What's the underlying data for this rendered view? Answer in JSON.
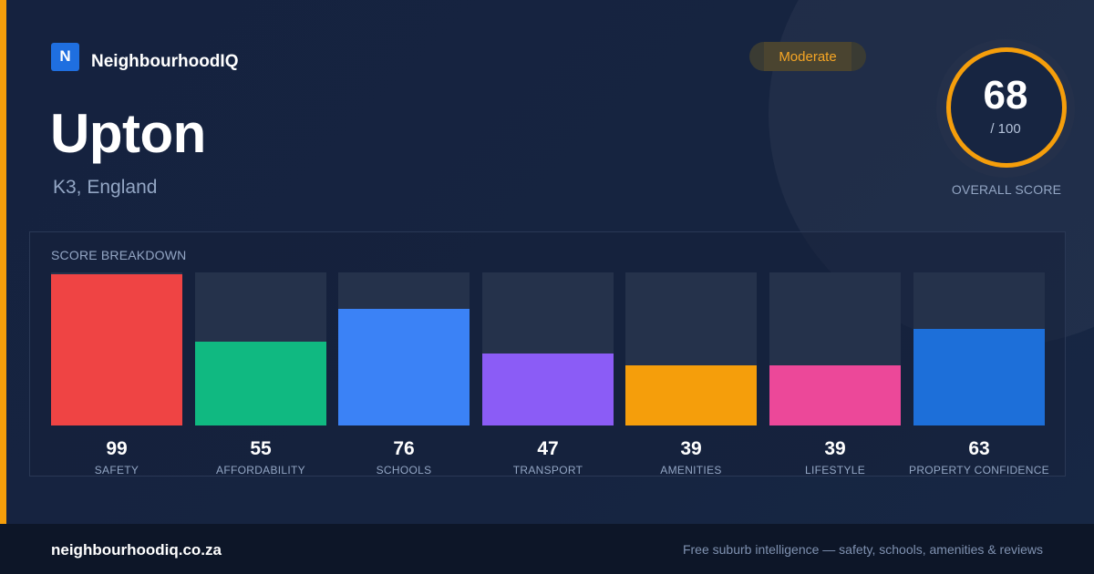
{
  "brand": {
    "logo_letter": "N",
    "name": "NeighbourhoodIQ",
    "accent_color": "#f59e0b"
  },
  "suburb": {
    "name": "Upton",
    "location": "K3, England"
  },
  "rating": {
    "label": "Moderate",
    "color": "#f5a524"
  },
  "overall": {
    "score": "68",
    "max_label": "/ 100",
    "score_fraction": 0.68,
    "label": "OVERALL SCORE"
  },
  "breakdown": {
    "title": "SCORE BREAKDOWN",
    "categories": [
      {
        "label": "SAFETY",
        "value": 99,
        "color": "#ef4444"
      },
      {
        "label": "AFFORDABILITY",
        "value": 55,
        "color": "#10b981"
      },
      {
        "label": "SCHOOLS",
        "value": 76,
        "color": "#3b82f6"
      },
      {
        "label": "TRANSPORT",
        "value": 47,
        "color": "#8b5cf6"
      },
      {
        "label": "AMENITIES",
        "value": 39,
        "color": "#f59e0b"
      },
      {
        "label": "LIFESTYLE",
        "value": 39,
        "color": "#ec4899"
      },
      {
        "label": "PROPERTY CONFIDENCE",
        "value": 63,
        "color": "#1d6fd9"
      }
    ]
  },
  "footer": {
    "domain": "neighbourhoodiq.co.za",
    "tagline": "Free suburb intelligence — safety, schools, amenities & reviews"
  }
}
